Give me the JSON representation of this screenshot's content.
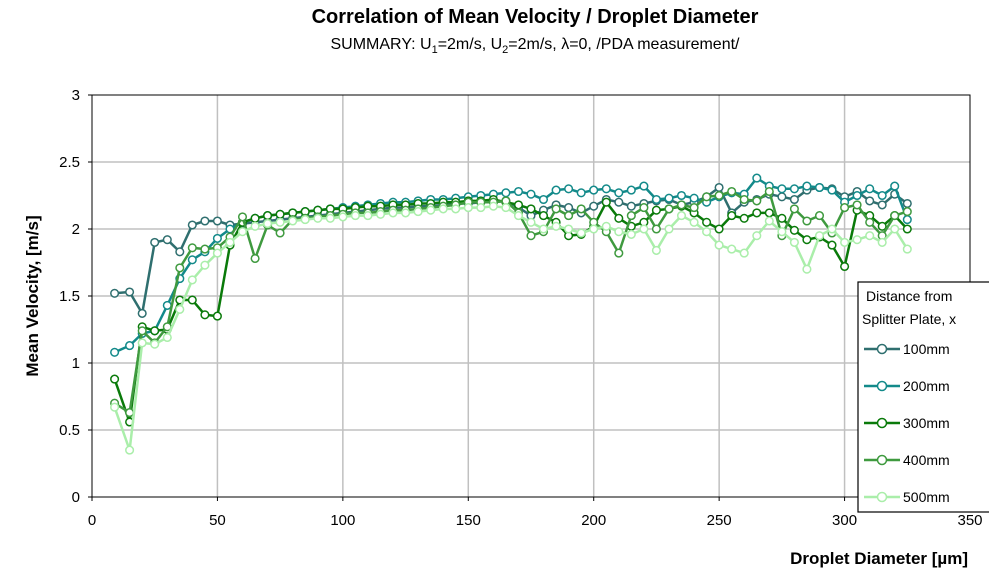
{
  "chart_data": {
    "type": "line",
    "title": "Correlation of Mean Velocity / Droplet Diameter",
    "subtitle": {
      "prefix": "SUMMARY: U",
      "u1_sub": "1",
      "mid1": "=2m/s, U",
      "u2_sub": "2",
      "mid2": "=2m/s, ",
      "lambda": "λ",
      "suffix": "=0, /PDA measurement/"
    },
    "xlabel": "Droplet Diameter [µm]",
    "ylabel": "Mean Velocity, [m/s]",
    "xlim": [
      0,
      350
    ],
    "ylim": [
      0,
      3
    ],
    "x_ticks": [
      0,
      50,
      100,
      150,
      200,
      250,
      300,
      350
    ],
    "y_ticks": [
      0,
      0.5,
      1,
      1.5,
      2,
      2.5,
      3
    ],
    "x_tick_labels": [
      "0",
      "50",
      "100",
      "150",
      "200",
      "250",
      "300",
      "350"
    ],
    "y_tick_labels": [
      "0",
      "0.5",
      "1",
      "1.5",
      "2",
      "2.5",
      "3"
    ],
    "grid": true,
    "legend": {
      "title_line1": "Distance from",
      "title_line2": "Splitter Plate, x",
      "placement": "right"
    },
    "series": [
      {
        "name": "100mm",
        "color": "#2f6f6f",
        "x": [
          9,
          15,
          20,
          25,
          30,
          35,
          40,
          45,
          50,
          55,
          60,
          65,
          70,
          75,
          80,
          85,
          90,
          95,
          100,
          105,
          110,
          115,
          120,
          125,
          130,
          135,
          140,
          145,
          150,
          155,
          160,
          165,
          170,
          175,
          180,
          185,
          190,
          195,
          200,
          205,
          210,
          215,
          220,
          225,
          230,
          235,
          240,
          245,
          250,
          255,
          260,
          265,
          270,
          275,
          280,
          285,
          290,
          295,
          300,
          305,
          310,
          315,
          320,
          325
        ],
        "y": [
          1.52,
          1.53,
          1.37,
          1.9,
          1.92,
          1.83,
          2.03,
          2.06,
          2.06,
          2.03,
          2.04,
          2.05,
          2.06,
          2.07,
          2.08,
          2.09,
          2.1,
          2.11,
          2.12,
          2.13,
          2.14,
          2.15,
          2.16,
          2.16,
          2.17,
          2.17,
          2.18,
          2.19,
          2.19,
          2.2,
          2.2,
          2.21,
          2.16,
          2.1,
          2.14,
          2.18,
          2.16,
          2.12,
          2.17,
          2.22,
          2.2,
          2.17,
          2.19,
          2.21,
          2.22,
          2.18,
          2.2,
          2.24,
          2.31,
          2.12,
          2.2,
          2.22,
          2.26,
          2.24,
          2.22,
          2.29,
          2.31,
          2.3,
          2.24,
          2.28,
          2.21,
          2.18,
          2.26,
          2.19
        ]
      },
      {
        "name": "200mm",
        "color": "#138a8a",
        "x": [
          9,
          15,
          20,
          25,
          30,
          35,
          40,
          45,
          50,
          55,
          60,
          65,
          70,
          75,
          80,
          85,
          90,
          95,
          100,
          105,
          110,
          115,
          120,
          125,
          130,
          135,
          140,
          145,
          150,
          155,
          160,
          165,
          170,
          175,
          180,
          185,
          190,
          195,
          200,
          205,
          210,
          215,
          220,
          225,
          230,
          235,
          240,
          245,
          250,
          255,
          260,
          265,
          270,
          275,
          280,
          285,
          290,
          295,
          300,
          305,
          310,
          315,
          320,
          325
        ],
        "y": [
          1.08,
          1.13,
          1.22,
          1.24,
          1.43,
          1.63,
          1.77,
          1.83,
          1.93,
          2.0,
          2.05,
          2.08,
          2.1,
          2.11,
          2.12,
          2.13,
          2.14,
          2.15,
          2.16,
          2.17,
          2.18,
          2.19,
          2.2,
          2.2,
          2.21,
          2.22,
          2.22,
          2.23,
          2.24,
          2.25,
          2.26,
          2.27,
          2.28,
          2.26,
          2.22,
          2.29,
          2.3,
          2.27,
          2.29,
          2.3,
          2.27,
          2.29,
          2.32,
          2.22,
          2.23,
          2.25,
          2.23,
          2.2,
          2.24,
          2.27,
          2.26,
          2.38,
          2.32,
          2.3,
          2.3,
          2.32,
          2.31,
          2.29,
          2.2,
          2.25,
          2.3,
          2.25,
          2.32,
          2.07
        ]
      },
      {
        "name": "300mm",
        "color": "#0a7a0a",
        "x": [
          9,
          15,
          20,
          25,
          30,
          35,
          40,
          45,
          50,
          55,
          60,
          65,
          70,
          75,
          80,
          85,
          90,
          95,
          100,
          105,
          110,
          115,
          120,
          125,
          130,
          135,
          140,
          145,
          150,
          155,
          160,
          165,
          170,
          175,
          180,
          185,
          190,
          195,
          200,
          205,
          210,
          215,
          220,
          225,
          230,
          235,
          240,
          245,
          250,
          255,
          260,
          265,
          270,
          275,
          280,
          285,
          290,
          295,
          300,
          305,
          310,
          315,
          320,
          325
        ],
        "y": [
          0.88,
          0.56,
          1.27,
          1.24,
          1.25,
          1.47,
          1.47,
          1.36,
          1.35,
          1.88,
          2.05,
          2.08,
          2.1,
          2.11,
          2.12,
          2.13,
          2.14,
          2.15,
          2.15,
          2.16,
          2.17,
          2.17,
          2.18,
          2.18,
          2.19,
          2.19,
          2.2,
          2.2,
          2.21,
          2.21,
          2.22,
          2.2,
          2.18,
          2.15,
          2.1,
          2.05,
          1.95,
          1.96,
          2.02,
          2.2,
          2.08,
          2.02,
          2.05,
          2.14,
          2.15,
          2.17,
          2.12,
          2.05,
          2.0,
          2.1,
          2.08,
          2.12,
          2.12,
          2.08,
          1.99,
          1.92,
          1.94,
          1.88,
          1.72,
          2.14,
          2.1,
          2.02,
          2.1,
          2.0
        ]
      },
      {
        "name": "400mm",
        "color": "#3f9a3f",
        "x": [
          9,
          15,
          20,
          25,
          30,
          35,
          40,
          45,
          50,
          55,
          60,
          65,
          70,
          75,
          80,
          85,
          90,
          95,
          100,
          105,
          110,
          115,
          120,
          125,
          130,
          135,
          140,
          145,
          150,
          155,
          160,
          165,
          170,
          175,
          180,
          185,
          190,
          195,
          200,
          205,
          210,
          215,
          220,
          225,
          230,
          235,
          240,
          245,
          250,
          255,
          260,
          265,
          270,
          275,
          280,
          285,
          290,
          295,
          300,
          305,
          310,
          315,
          320,
          325
        ],
        "y": [
          0.7,
          0.63,
          1.24,
          1.15,
          1.27,
          1.71,
          1.86,
          1.85,
          1.86,
          1.94,
          2.09,
          1.78,
          2.03,
          1.97,
          2.07,
          2.08,
          2.09,
          2.1,
          2.11,
          2.12,
          2.12,
          2.13,
          2.14,
          2.14,
          2.15,
          2.16,
          2.17,
          2.18,
          2.2,
          2.2,
          2.2,
          2.21,
          2.12,
          1.95,
          1.98,
          2.15,
          2.1,
          2.15,
          2.05,
          1.98,
          1.82,
          2.1,
          2.16,
          2.0,
          2.15,
          2.18,
          2.16,
          2.24,
          2.25,
          2.28,
          2.22,
          2.21,
          2.28,
          1.95,
          2.15,
          2.06,
          2.1,
          1.97,
          2.16,
          2.18,
          2.05,
          1.95,
          2.1,
          2.13
        ]
      },
      {
        "name": "500mm",
        "color": "#aaeeaa",
        "x": [
          9,
          15,
          20,
          25,
          30,
          35,
          40,
          45,
          50,
          55,
          60,
          65,
          70,
          75,
          80,
          85,
          90,
          95,
          100,
          105,
          110,
          115,
          120,
          125,
          130,
          135,
          140,
          145,
          150,
          155,
          160,
          165,
          170,
          175,
          180,
          185,
          190,
          195,
          200,
          205,
          210,
          215,
          220,
          225,
          230,
          235,
          240,
          245,
          250,
          255,
          260,
          265,
          270,
          275,
          280,
          285,
          290,
          295,
          300,
          305,
          310,
          315,
          320,
          325
        ],
        "y": [
          0.67,
          0.35,
          1.15,
          1.14,
          1.19,
          1.4,
          1.62,
          1.73,
          1.82,
          1.9,
          1.98,
          2.02,
          2.04,
          2.05,
          2.06,
          2.07,
          2.08,
          2.08,
          2.09,
          2.1,
          2.1,
          2.11,
          2.12,
          2.12,
          2.13,
          2.14,
          2.15,
          2.15,
          2.16,
          2.16,
          2.17,
          2.16,
          2.1,
          2.05,
          2.0,
          2.02,
          2.0,
          1.97,
          2.0,
          2.02,
          1.98,
          1.96,
          2.0,
          1.84,
          2.0,
          2.1,
          2.05,
          1.98,
          1.88,
          1.85,
          1.82,
          1.95,
          2.06,
          1.98,
          1.9,
          1.7,
          1.95,
          2.0,
          1.9,
          1.92,
          1.95,
          1.9,
          2.0,
          1.85
        ]
      }
    ]
  }
}
